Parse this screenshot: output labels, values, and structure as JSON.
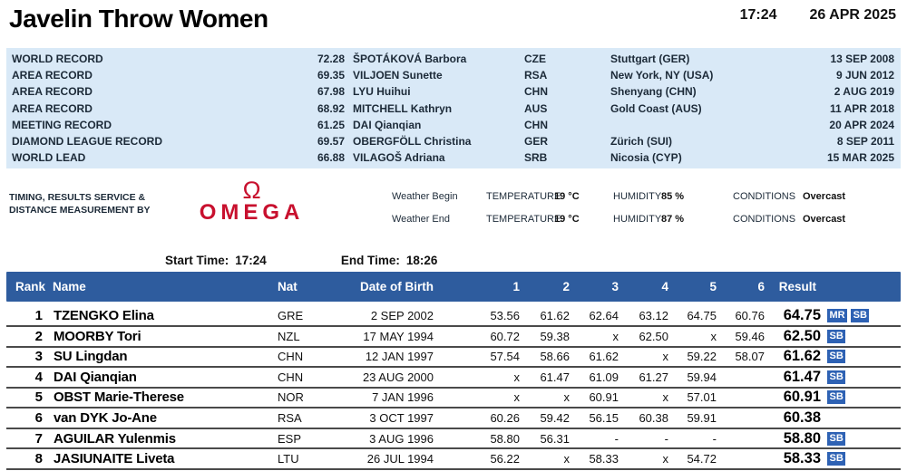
{
  "header": {
    "title": "Javelin Throw Women",
    "time": "17:24",
    "date": "26 APR 2025"
  },
  "records": {
    "rows": [
      {
        "label": "WORLD RECORD",
        "mark": "72.28",
        "athlete": "ŠPOTÁKOVÁ Barbora",
        "nat": "CZE",
        "venue": "Stuttgart (GER)",
        "date": "13 SEP 2008"
      },
      {
        "label": "AREA RECORD",
        "mark": "69.35",
        "athlete": "VILJOEN Sunette",
        "nat": "RSA",
        "venue": "New York, NY (USA)",
        "date": "9 JUN 2012"
      },
      {
        "label": "AREA RECORD",
        "mark": "67.98",
        "athlete": "LYU Huihui",
        "nat": "CHN",
        "venue": "Shenyang (CHN)",
        "date": "2 AUG 2019"
      },
      {
        "label": "AREA RECORD",
        "mark": "68.92",
        "athlete": "MITCHELL Kathryn",
        "nat": "AUS",
        "venue": "Gold Coast (AUS)",
        "date": "11 APR 2018"
      },
      {
        "label": "MEETING RECORD",
        "mark": "61.25",
        "athlete": "DAI Qianqian",
        "nat": "CHN",
        "venue": "",
        "date": "20 APR 2024"
      },
      {
        "label": "DIAMOND LEAGUE RECORD",
        "mark": "69.57",
        "athlete": "OBERGFÖLL Christina",
        "nat": "GER",
        "venue": "Zürich (SUI)",
        "date": "8 SEP 2011"
      },
      {
        "label": "WORLD LEAD",
        "mark": "66.88",
        "athlete": "VILAGOŠ Adriana",
        "nat": "SRB",
        "venue": "Nicosia (CYP)",
        "date": "15 MAR 2025"
      }
    ]
  },
  "services": {
    "line1": "TIMING, RESULTS SERVICE &",
    "line2": "DISTANCE MEASUREMENT BY",
    "logo_symbol": "Ω",
    "logo_text": "OMEGA",
    "logo_color": "#c8102e"
  },
  "weather": {
    "rows": [
      {
        "label": "Weather Begin",
        "temperature_label": "TEMPERATURE",
        "temperature": "19 °C",
        "humidity_label": "HUMIDITY",
        "humidity": "85 %",
        "conditions_label": "CONDITIONS",
        "conditions": "Overcast"
      },
      {
        "label": "Weather End",
        "temperature_label": "TEMPERATURE",
        "temperature": "19 °C",
        "humidity_label": "HUMIDITY",
        "humidity": "87 %",
        "conditions_label": "CONDITIONS",
        "conditions": "Overcast"
      }
    ]
  },
  "session": {
    "start_label": "Start Time:",
    "start_time": "17:24",
    "end_label": "End Time:",
    "end_time": "18:26"
  },
  "results": {
    "columns": [
      "Rank",
      "Name",
      "Nat",
      "Date of Birth",
      "1",
      "2",
      "3",
      "4",
      "5",
      "6",
      "Result"
    ],
    "rows": [
      {
        "rank": "1",
        "name": "TZENGKO Elina",
        "nat": "GRE",
        "dob": "2 SEP 2002",
        "attempts": [
          "53.56",
          "61.62",
          "62.64",
          "63.12",
          "64.75",
          "60.76"
        ],
        "result": "64.75",
        "badges": [
          "MR",
          "SB"
        ]
      },
      {
        "rank": "2",
        "name": "MOORBY Tori",
        "nat": "NZL",
        "dob": "17 MAY 1994",
        "attempts": [
          "60.72",
          "59.38",
          "x",
          "62.50",
          "x",
          "59.46"
        ],
        "result": "62.50",
        "badges": [
          "SB"
        ]
      },
      {
        "rank": "3",
        "name": "SU Lingdan",
        "nat": "CHN",
        "dob": "12 JAN 1997",
        "attempts": [
          "57.54",
          "58.66",
          "61.62",
          "x",
          "59.22",
          "58.07"
        ],
        "result": "61.62",
        "badges": [
          "SB"
        ]
      },
      {
        "rank": "4",
        "name": "DAI Qianqian",
        "nat": "CHN",
        "dob": "23 AUG 2000",
        "attempts": [
          "x",
          "61.47",
          "61.09",
          "61.27",
          "59.94",
          ""
        ],
        "result": "61.47",
        "badges": [
          "SB"
        ]
      },
      {
        "rank": "5",
        "name": "OBST Marie-Therese",
        "nat": "NOR",
        "dob": "7 JAN 1996",
        "attempts": [
          "x",
          "x",
          "60.91",
          "x",
          "57.01",
          ""
        ],
        "result": "60.91",
        "badges": [
          "SB"
        ]
      },
      {
        "rank": "6",
        "name": "van DYK Jo-Ane",
        "nat": "RSA",
        "dob": "3 OCT 1997",
        "attempts": [
          "60.26",
          "59.42",
          "56.15",
          "60.38",
          "59.91",
          ""
        ],
        "result": "60.38",
        "badges": []
      },
      {
        "rank": "7",
        "name": "AGUILAR Yulenmis",
        "nat": "ESP",
        "dob": "3 AUG 1996",
        "attempts": [
          "58.80",
          "56.31",
          "-",
          "-",
          "-",
          ""
        ],
        "result": "58.80",
        "badges": [
          "SB"
        ]
      },
      {
        "rank": "8",
        "name": "JASIUNAITE Liveta",
        "nat": "LTU",
        "dob": "26 JUL 1994",
        "attempts": [
          "56.22",
          "x",
          "58.33",
          "x",
          "54.72",
          ""
        ],
        "result": "58.33",
        "badges": [
          "SB"
        ]
      }
    ]
  },
  "colors": {
    "header_blue": "#2e5c9e",
    "badge_blue": "#2e62b4",
    "records_bg": "#d9e9f7",
    "omega_red": "#c8102e",
    "dark_text": "#1c2a38",
    "separator": "#4a4a4a"
  }
}
